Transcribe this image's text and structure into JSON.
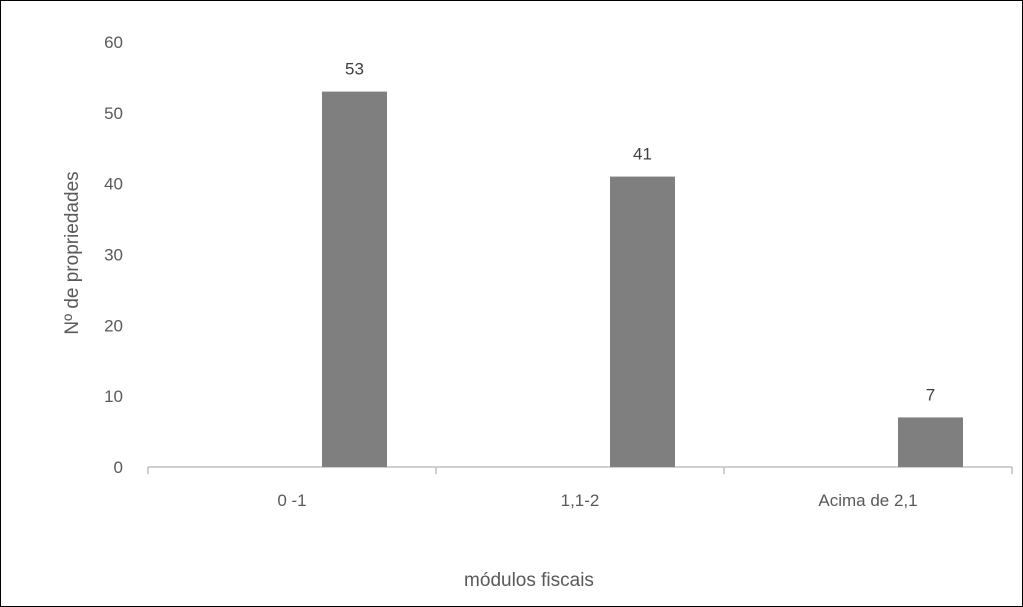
{
  "chart_data": {
    "type": "bar",
    "title": "",
    "xlabel": "módulos fiscais",
    "ylabel": "Nº de propriedades",
    "categories": [
      "0 -1",
      "1,1-2",
      "Acima de 2,1"
    ],
    "values": [
      53,
      41,
      7
    ],
    "data_labels": [
      "53",
      "41",
      "7"
    ],
    "yticks": [
      "0",
      "10",
      "20",
      "30",
      "40",
      "50",
      "60"
    ],
    "ylim": [
      0,
      60
    ],
    "grid": false,
    "legend": "none",
    "bar_color": "#7f7f7f",
    "axis_color": "#bfbfbf"
  }
}
